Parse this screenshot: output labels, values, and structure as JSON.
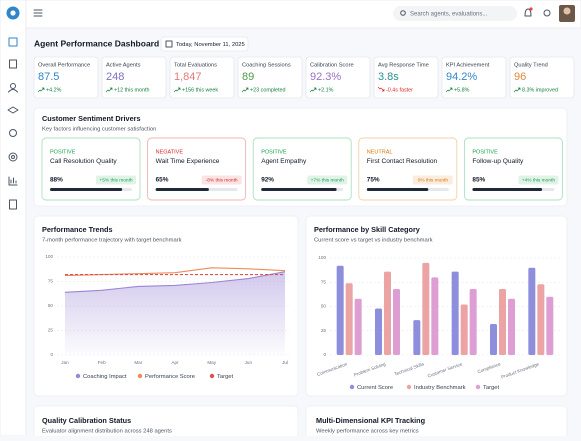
{
  "header": {
    "search_placeholder": "Search agents, evaluations...",
    "title": "Agent Performance Dashboard",
    "date": "Today, November 11, 2025"
  },
  "kpis": [
    {
      "label": "Overall Performance",
      "value": "87.5",
      "change": "+4.2%",
      "color": "#2f86c9",
      "change_color": "#15803d"
    },
    {
      "label": "Active Agents",
      "value": "248",
      "change": "+12 this month",
      "color": "#7b6fc4",
      "change_color": "#15803d"
    },
    {
      "label": "Total Evaluations",
      "value": "1,847",
      "change": "+156 this week",
      "color": "#e07a7a",
      "change_color": "#15803d"
    },
    {
      "label": "Coaching Sessions",
      "value": "89",
      "change": "+23 completed",
      "color": "#4f9a4a",
      "change_color": "#15803d"
    },
    {
      "label": "Calibration Score",
      "value": "92.3%",
      "change": "+2.1%",
      "color": "#9a6fc4",
      "change_color": "#15803d"
    },
    {
      "label": "Avg Response Time",
      "value": "3.8s",
      "change": "-0.4s faster",
      "color": "#2a8f8f",
      "change_color": "#dc2626"
    },
    {
      "label": "KPI Achievement",
      "value": "94.2%",
      "change": "+5.8%",
      "color": "#2f86c9",
      "change_color": "#15803d"
    },
    {
      "label": "Quality Trend",
      "value": "96",
      "change": "8.3% improved",
      "color": "#e0883a",
      "change_color": "#15803d"
    }
  ],
  "sentiment": {
    "title": "Customer Sentiment Drivers",
    "subtitle": "Key factors influencing customer satisfaction",
    "drivers": [
      {
        "status": "POSITIVE",
        "name": "Call Resolution Quality",
        "value": 88,
        "value_label": "88%",
        "change": "+5% this month",
        "color": "#16a34a"
      },
      {
        "status": "NEGATIVE",
        "name": "Wait Time Experience",
        "value": 65,
        "value_label": "65%",
        "change": "-8% this month",
        "color": "#dc2626"
      },
      {
        "status": "POSITIVE",
        "name": "Agent Empathy",
        "value": 92,
        "value_label": "92%",
        "change": "+7% this month",
        "color": "#16a34a"
      },
      {
        "status": "NEUTRAL",
        "name": "First Contact Resolution",
        "value": 75,
        "value_label": "75%",
        "change": "0% this month",
        "color": "#d97706"
      },
      {
        "status": "POSITIVE",
        "name": "Follow-up Quality",
        "value": 85,
        "value_label": "85%",
        "change": "+4% this month",
        "color": "#16a34a"
      }
    ]
  },
  "chart_data": [
    {
      "type": "line",
      "title": "Performance Trends",
      "subtitle": "7-month performance trajectory with target benchmark",
      "categories": [
        "Jan",
        "Feb",
        "Mar",
        "Apr",
        "May",
        "Jun",
        "Jul"
      ],
      "ylim": [
        0,
        100
      ],
      "yticks": [
        0,
        25,
        50,
        75,
        100
      ],
      "grid": true,
      "series": [
        {
          "name": "Coaching Impact",
          "color": "#9b86d6",
          "area": true,
          "values": [
            64,
            66,
            70,
            71,
            74,
            78,
            85
          ]
        },
        {
          "name": "Performance Score",
          "color": "#f08a5d",
          "values": [
            81,
            82,
            83,
            84,
            89,
            88,
            86
          ]
        },
        {
          "name": "Target",
          "color": "#d9534f",
          "dashed": true,
          "values": [
            82,
            82,
            82,
            82,
            82,
            82,
            82
          ]
        }
      ]
    },
    {
      "type": "bar",
      "title": "Performance by Skill Category",
      "subtitle": "Current score vs target vs industry benchmark",
      "categories": [
        "Communication",
        "Problem Solving",
        "Technical Skills",
        "Customer Service",
        "Compliance",
        "Product Knowledge"
      ],
      "ylim": [
        0,
        100
      ],
      "yticks": [
        0,
        25,
        50,
        75,
        100
      ],
      "grid": true,
      "series": [
        {
          "name": "Current Score",
          "color": "#8e8fdc",
          "values": [
            92,
            48,
            36,
            86,
            32,
            90
          ]
        },
        {
          "name": "Industry Benchmark",
          "color": "#eba3a3",
          "values": [
            74,
            86,
            95,
            52,
            68,
            73
          ]
        },
        {
          "name": "Target",
          "color": "#dd9fd3",
          "values": [
            58,
            68,
            80,
            68,
            58,
            60
          ]
        }
      ]
    }
  ],
  "panels": [
    {
      "title": "Quality Calibration Status",
      "subtitle": "Evaluator alignment distribution across 248 agents"
    },
    {
      "title": "Multi-Dimensional KPI Tracking",
      "subtitle": "Weekly performance across key metrics"
    }
  ]
}
